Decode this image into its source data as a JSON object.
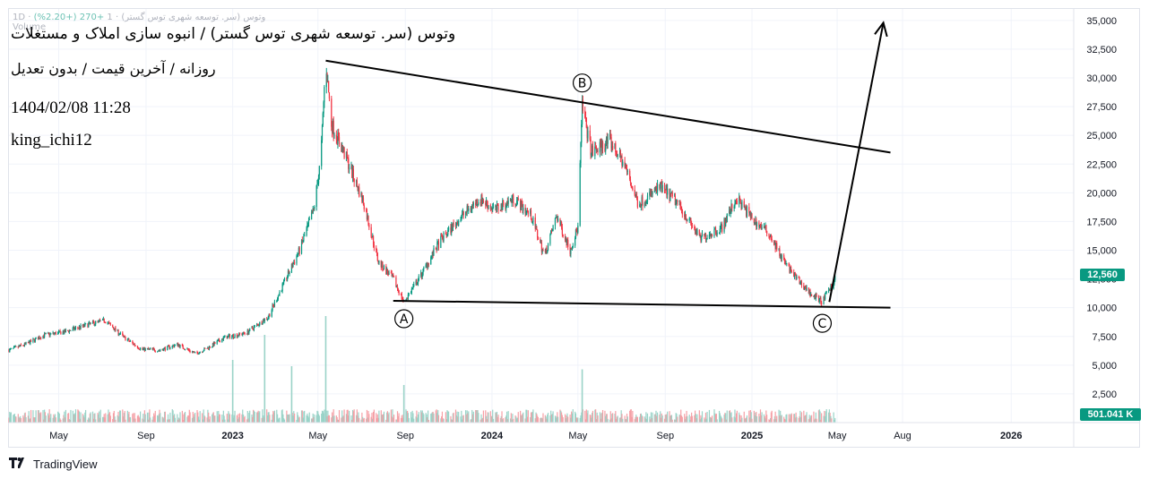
{
  "legend": {
    "symbol_faint": "1D · وتوس (سر. توسعه شهری توس گستر) · 1",
    "change_faint": "+270 (+2.20%)",
    "volume_faint": "Volume"
  },
  "overlay": {
    "title": "وتوس (سر. توسعه شهری توس گستر) / انبوه سازی املاک و مستغلات",
    "subtitle": "روزانه / آخرین قیمت / بدون تعدیل",
    "datetime": "1404/02/08 11:28",
    "author": "king_ichi12"
  },
  "badges": {
    "last_price": "12,560",
    "last_volume": "501.041 K"
  },
  "brand": {
    "name": "TradingView"
  },
  "colors": {
    "up": "#089981",
    "down": "#f23645",
    "vol_up": "#9ad3c8",
    "vol_down": "#f5a0a6",
    "grid": "#f0f3fa",
    "axis_text": "#131722",
    "drawing": "#000000"
  },
  "chart_data": {
    "type": "candlestick",
    "y_axis_ticks": [
      "35,000",
      "32,500",
      "30,000",
      "27,500",
      "25,000",
      "22,500",
      "20,000",
      "17,500",
      "15,000",
      "12,500",
      "10,000",
      "7,500",
      "5,000",
      "2,500"
    ],
    "y_tick_values": [
      35000,
      32500,
      30000,
      27500,
      25000,
      22500,
      20000,
      17500,
      15000,
      12500,
      10000,
      7500,
      5000,
      2500
    ],
    "ylim": [
      0,
      36000
    ],
    "x_axis_ticks": [
      "May",
      "Sep",
      "2023",
      "May",
      "Sep",
      "2024",
      "May",
      "Sep",
      "2025",
      "May",
      "Aug",
      "2026"
    ],
    "x_tick_dates": [
      "2022-05-01",
      "2022-09-01",
      "2023-01-01",
      "2023-05-01",
      "2023-09-01",
      "2024-01-01",
      "2024-05-01",
      "2024-09-01",
      "2025-01-01",
      "2025-05-01",
      "2025-08-01",
      "2026-01-01"
    ],
    "xlim": [
      "2022-02-20",
      "2026-03-30"
    ],
    "last_price": 12560,
    "close_path": [
      {
        "date": "2022-02-20",
        "close": 6300
      },
      {
        "date": "2022-03-15",
        "close": 6800
      },
      {
        "date": "2022-04-10",
        "close": 7600
      },
      {
        "date": "2022-05-10",
        "close": 7900
      },
      {
        "date": "2022-06-10",
        "close": 8500
      },
      {
        "date": "2022-07-05",
        "close": 8900
      },
      {
        "date": "2022-08-01",
        "close": 7400
      },
      {
        "date": "2022-08-25",
        "close": 6400
      },
      {
        "date": "2022-09-20",
        "close": 6300
      },
      {
        "date": "2022-10-15",
        "close": 6800
      },
      {
        "date": "2022-11-10",
        "close": 6000
      },
      {
        "date": "2022-11-30",
        "close": 6600
      },
      {
        "date": "2022-12-20",
        "close": 7400
      },
      {
        "date": "2023-01-20",
        "close": 7800
      },
      {
        "date": "2023-02-20",
        "close": 9200
      },
      {
        "date": "2023-03-10",
        "close": 11600
      },
      {
        "date": "2023-04-05",
        "close": 15000
      },
      {
        "date": "2023-04-25",
        "close": 18500
      },
      {
        "date": "2023-05-05",
        "close": 23000
      },
      {
        "date": "2023-05-12",
        "close": 31500
      },
      {
        "date": "2023-05-20",
        "close": 26000
      },
      {
        "date": "2023-06-10",
        "close": 23000
      },
      {
        "date": "2023-07-05",
        "close": 19000
      },
      {
        "date": "2023-07-25",
        "close": 14000
      },
      {
        "date": "2023-08-15",
        "close": 12500
      },
      {
        "date": "2023-08-30",
        "close": 10500
      },
      {
        "date": "2023-09-20",
        "close": 12500
      },
      {
        "date": "2023-10-20",
        "close": 15800
      },
      {
        "date": "2023-11-20",
        "close": 18000
      },
      {
        "date": "2023-12-15",
        "close": 19500
      },
      {
        "date": "2024-01-05",
        "close": 18500
      },
      {
        "date": "2024-02-01",
        "close": 19500
      },
      {
        "date": "2024-02-25",
        "close": 18000
      },
      {
        "date": "2024-03-15",
        "close": 14500
      },
      {
        "date": "2024-04-01",
        "close": 18000
      },
      {
        "date": "2024-04-20",
        "close": 15000
      },
      {
        "date": "2024-05-01",
        "close": 17000
      },
      {
        "date": "2024-05-07",
        "close": 27500
      },
      {
        "date": "2024-05-20",
        "close": 23500
      },
      {
        "date": "2024-06-15",
        "close": 24500
      },
      {
        "date": "2024-07-05",
        "close": 22500
      },
      {
        "date": "2024-07-25",
        "close": 19000
      },
      {
        "date": "2024-08-25",
        "close": 20500
      },
      {
        "date": "2024-09-20",
        "close": 19000
      },
      {
        "date": "2024-10-20",
        "close": 16000
      },
      {
        "date": "2024-11-20",
        "close": 17000
      },
      {
        "date": "2024-12-10",
        "close": 19500
      },
      {
        "date": "2025-01-05",
        "close": 17500
      },
      {
        "date": "2025-01-25",
        "close": 16500
      },
      {
        "date": "2025-02-15",
        "close": 14000
      },
      {
        "date": "2025-03-05",
        "close": 12500
      },
      {
        "date": "2025-03-25",
        "close": 11200
      },
      {
        "date": "2025-04-10",
        "close": 10500
      },
      {
        "date": "2025-04-28",
        "close": 12560
      }
    ],
    "volume_spikes": [
      {
        "date": "2023-01-01",
        "value": 1
      },
      {
        "date": "2023-02-15",
        "value": 1.4
      },
      {
        "date": "2023-03-25",
        "value": 0.9
      },
      {
        "date": "2023-05-12",
        "value": 1.7
      },
      {
        "date": "2023-08-30",
        "value": 0.6
      },
      {
        "date": "2024-05-07",
        "value": 0.85
      }
    ],
    "annotations": [
      {
        "label": "A",
        "date": "2023-08-30",
        "value": 10600
      },
      {
        "label": "B",
        "date": "2024-05-07",
        "value": 28000
      },
      {
        "label": "C",
        "date": "2025-04-10",
        "value": 10200
      }
    ],
    "trendlines": [
      {
        "name": "upper",
        "from": {
          "date": "2023-05-12",
          "value": 31500
        },
        "to": {
          "date": "2025-07-15",
          "value": 23500
        }
      },
      {
        "name": "lower",
        "from": {
          "date": "2023-08-15",
          "value": 10600
        },
        "to": {
          "date": "2025-07-15",
          "value": 10000
        }
      },
      {
        "name": "arrow",
        "from": {
          "date": "2025-04-20",
          "value": 10500
        },
        "to": {
          "date": "2025-07-05",
          "value": 34800
        }
      }
    ]
  }
}
